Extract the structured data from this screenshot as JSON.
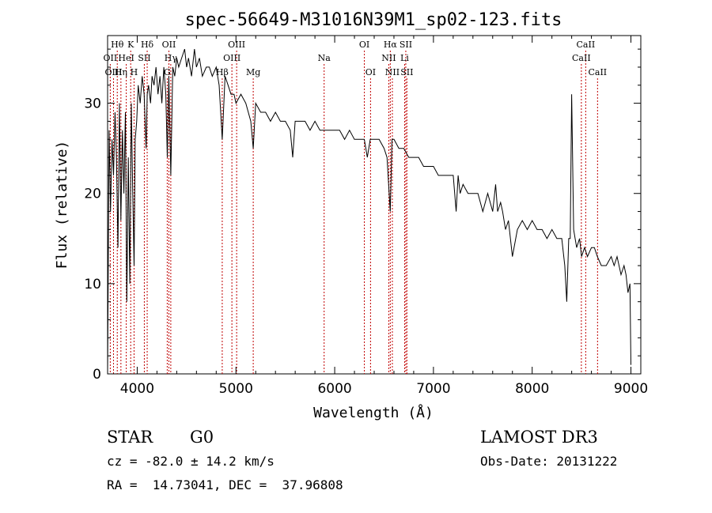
{
  "chart_data": {
    "type": "line",
    "title": "spec-56649-M31016N39M1_sp02-123.fits",
    "xlabel": "Wavelength (Å)",
    "ylabel": "Flux (relative)",
    "xlim": [
      3700,
      9100
    ],
    "ylim": [
      0,
      37.5
    ],
    "xticks": [
      4000,
      5000,
      6000,
      7000,
      8000,
      9000
    ],
    "yticks": [
      0,
      10,
      20,
      30
    ],
    "series": [
      {
        "name": "flux",
        "x": [
          3700,
          3715,
          3730,
          3745,
          3760,
          3775,
          3790,
          3805,
          3820,
          3835,
          3850,
          3865,
          3880,
          3895,
          3910,
          3925,
          3940,
          3955,
          3968,
          3980,
          3995,
          4010,
          4030,
          4050,
          4070,
          4090,
          4101,
          4115,
          4135,
          4150,
          4170,
          4190,
          4210,
          4230,
          4250,
          4270,
          4290,
          4305,
          4320,
          4340,
          4360,
          4380,
          4400,
          4420,
          4450,
          4480,
          4500,
          4520,
          4550,
          4580,
          4600,
          4630,
          4660,
          4700,
          4730,
          4760,
          4800,
          4830,
          4861,
          4890,
          4920,
          4950,
          4980,
          5000,
          5050,
          5100,
          5150,
          5175,
          5200,
          5250,
          5300,
          5350,
          5400,
          5450,
          5500,
          5550,
          5575,
          5600,
          5650,
          5700,
          5750,
          5800,
          5850,
          5893,
          5950,
          6000,
          6050,
          6100,
          6150,
          6200,
          6250,
          6300,
          6330,
          6360,
          6400,
          6450,
          6500,
          6530,
          6563,
          6580,
          6600,
          6650,
          6700,
          6750,
          6800,
          6850,
          6900,
          6950,
          7000,
          7050,
          7100,
          7150,
          7200,
          7230,
          7250,
          7270,
          7300,
          7350,
          7400,
          7450,
          7500,
          7550,
          7600,
          7630,
          7650,
          7680,
          7700,
          7730,
          7760,
          7800,
          7850,
          7900,
          7950,
          8000,
          8050,
          8100,
          8150,
          8200,
          8250,
          8300,
          8330,
          8350,
          8370,
          8385,
          8400,
          8420,
          8450,
          8480,
          8500,
          8530,
          8560,
          8600,
          8630,
          8660,
          8700,
          8750,
          8800,
          8830,
          8860,
          8900,
          8930,
          8950,
          8970,
          8990,
          9000
        ],
        "y": [
          0,
          27,
          18,
          26,
          22,
          29,
          24,
          14,
          30,
          17,
          27,
          20,
          29,
          8,
          24,
          10,
          30,
          20,
          12,
          26,
          28,
          32,
          30,
          33,
          31,
          25,
          31,
          32,
          30,
          33,
          32,
          34,
          31,
          33,
          30,
          34,
          31,
          24,
          33,
          22,
          34,
          33,
          35,
          34,
          35,
          36,
          34,
          35,
          33,
          36,
          34,
          35,
          33,
          34,
          34,
          33,
          34,
          32,
          26,
          33,
          32,
          31,
          31,
          30,
          31,
          30,
          28,
          25,
          30,
          29,
          29,
          28,
          29,
          28,
          28,
          27,
          24,
          28,
          28,
          28,
          27,
          28,
          27,
          27,
          27,
          27,
          27,
          26,
          27,
          26,
          26,
          26,
          24,
          26,
          26,
          26,
          25,
          24,
          18,
          26,
          26,
          25,
          25,
          24,
          24,
          24,
          23,
          23,
          23,
          22,
          22,
          22,
          22,
          18,
          22,
          20,
          21,
          20,
          20,
          20,
          18,
          20,
          18,
          21,
          18,
          19,
          18,
          16,
          17,
          13,
          16,
          17,
          16,
          17,
          16,
          16,
          15,
          16,
          15,
          15,
          12,
          8,
          15,
          15,
          31,
          16,
          14,
          15,
          13,
          14,
          13,
          14,
          14,
          13,
          12,
          12,
          13,
          12,
          13,
          11,
          12,
          11,
          9,
          10,
          1
        ]
      }
    ],
    "line_markers": [
      {
        "label": "Hθ",
        "x": 3798,
        "row": 0
      },
      {
        "label": "K",
        "x": 3934,
        "row": 0
      },
      {
        "label": "Hδ",
        "x": 4101,
        "row": 0
      },
      {
        "label": "OII",
        "x": 4321,
        "row": 0
      },
      {
        "label": "OIII",
        "x": 5007,
        "row": 0
      },
      {
        "label": "OI",
        "x": 6300,
        "row": 0
      },
      {
        "label": "Hα",
        "x": 6563,
        "row": 0
      },
      {
        "label": "SII",
        "x": 6720,
        "row": 0
      },
      {
        "label": "CaII",
        "x": 8542,
        "row": 0
      },
      {
        "label": "OII",
        "x": 3727,
        "row": 1
      },
      {
        "label": "HeI",
        "x": 3889,
        "row": 1
      },
      {
        "label": "SII",
        "x": 4072,
        "row": 1
      },
      {
        "label": "Hγ",
        "x": 4340,
        "row": 1
      },
      {
        "label": "OIII",
        "x": 4959,
        "row": 1
      },
      {
        "label": "Na",
        "x": 5893,
        "row": 1
      },
      {
        "label": "NII",
        "x": 6548,
        "row": 1
      },
      {
        "label": "Li",
        "x": 6708,
        "row": 1
      },
      {
        "label": "CaII",
        "x": 8498,
        "row": 1
      },
      {
        "label": "OIII",
        "x": 3760,
        "row": 2
      },
      {
        "label": "Hη",
        "x": 3835,
        "row": 2
      },
      {
        "label": "H",
        "x": 3968,
        "row": 2
      },
      {
        "label": "G",
        "x": 4304,
        "row": 2
      },
      {
        "label": "Hβ",
        "x": 4861,
        "row": 2
      },
      {
        "label": "Mg",
        "x": 5175,
        "row": 2
      },
      {
        "label": "OI",
        "x": 6363,
        "row": 2
      },
      {
        "label": "NII",
        "x": 6584,
        "row": 2
      },
      {
        "label": "SII",
        "x": 6731,
        "row": 2
      },
      {
        "label": "CaII",
        "x": 8662,
        "row": 2
      }
    ]
  },
  "info": {
    "object_class": "STAR",
    "subclass": "G0",
    "survey": "LAMOST DR3",
    "cz": "cz = -82.0 ± 14.2 km/s",
    "obs_date": "Obs-Date: 20131222",
    "radec": "RA =  14.73041, DEC =  37.96808"
  }
}
